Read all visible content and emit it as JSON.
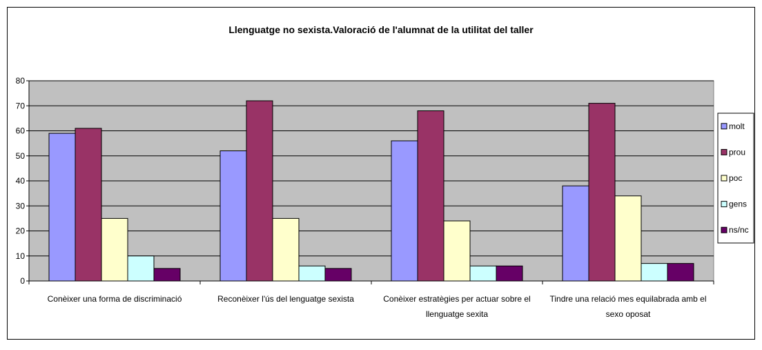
{
  "chart_data": {
    "type": "bar",
    "title": "Llenguatge no sexista.Valoració de l'alumnat de la utilitat del taller",
    "categories": [
      "Conèixer una forma de discriminació",
      "Reconèixer l'ús del lenguatge sexista",
      "Conèixer estratègies per actuar sobre el llenguatge sexita",
      "Tindre una relació mes equilabrada amb el sexo oposat"
    ],
    "series": [
      {
        "name": "molt",
        "color": "#9999ff",
        "values": [
          59,
          52,
          56,
          38
        ]
      },
      {
        "name": "prou",
        "color": "#993366",
        "values": [
          61,
          72,
          68,
          71
        ]
      },
      {
        "name": "poc",
        "color": "#ffffcc",
        "values": [
          25,
          25,
          24,
          34
        ]
      },
      {
        "name": "gens",
        "color": "#ccffff",
        "values": [
          10,
          6,
          6,
          7
        ]
      },
      {
        "name": "ns/nc",
        "color": "#660066",
        "values": [
          5,
          5,
          6,
          7
        ]
      }
    ],
    "ylim": [
      0,
      80
    ],
    "yticks": [
      0,
      10,
      20,
      30,
      40,
      50,
      60,
      70,
      80
    ],
    "grid": true,
    "legend": "right"
  }
}
